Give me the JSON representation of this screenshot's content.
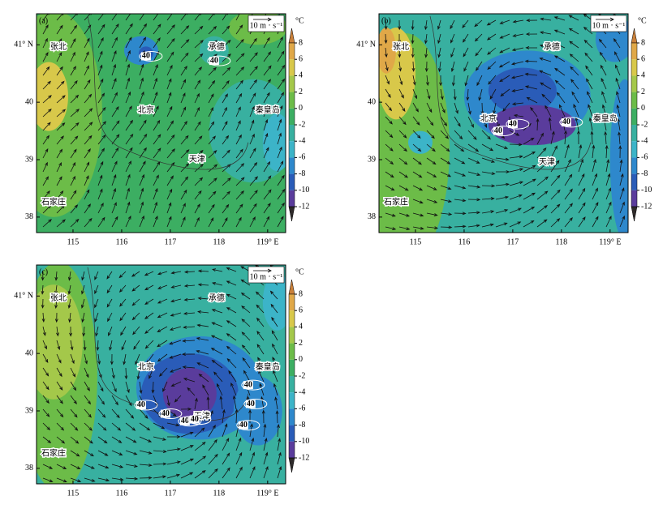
{
  "chart_data": [
    {
      "type": "map",
      "label": "(a)",
      "xlim": [
        114.25,
        119.37
      ],
      "ylim": [
        37.73,
        41.54
      ],
      "xticks": [
        115,
        116,
        117,
        118,
        {
          "value": 119,
          "label": "119° E"
        }
      ],
      "yticks": [
        38,
        39,
        40,
        {
          "value": 41,
          "label": "41° N"
        }
      ],
      "cities": [
        "张北",
        "承德",
        "北京",
        "秦皇岛",
        "天津",
        "石家庄"
      ],
      "contour_labels": [
        40,
        40
      ],
      "vector_key": "10 m · s⁻¹",
      "colorbar": {
        "unit": "°C",
        "ticks": [
          8,
          6,
          4,
          2,
          0,
          -2,
          -4,
          -6,
          -8,
          -10,
          -12
        ],
        "colors": [
          "#c9803a",
          "#e0a848",
          "#d8c84a",
          "#a4c84a",
          "#6cbc48",
          "#3cae62",
          "#38b0a0",
          "#3cb4c8",
          "#2e88cc",
          "#2a5cb8",
          "#5a3c9c",
          "#2e2a2a"
        ]
      }
    },
    {
      "type": "map",
      "label": "(b)",
      "xlim": [
        114.25,
        119.37
      ],
      "ylim": [
        37.73,
        41.54
      ],
      "xticks": [
        115,
        116,
        117,
        118,
        {
          "value": 119,
          "label": "119° E"
        }
      ],
      "yticks": [
        38,
        39,
        40,
        {
          "value": 41,
          "label": "41° N"
        }
      ],
      "cities": [
        "张北",
        "承德",
        "北京",
        "秦皇岛",
        "天津",
        "石家庄"
      ],
      "contour_labels": [
        40,
        40,
        40
      ],
      "vector_key": "10 m · s⁻¹",
      "colorbar": {
        "unit": "°C",
        "ticks": [
          8,
          6,
          4,
          2,
          0,
          -2,
          -4,
          -6,
          -8,
          -10,
          -12
        ],
        "colors": [
          "#c9803a",
          "#e0a848",
          "#d8c84a",
          "#a4c84a",
          "#6cbc48",
          "#3cae62",
          "#38b0a0",
          "#3cb4c8",
          "#2e88cc",
          "#2a5cb8",
          "#5a3c9c",
          "#2e2a2a"
        ]
      }
    },
    {
      "type": "map",
      "label": "(c)",
      "xlim": [
        114.25,
        119.37
      ],
      "ylim": [
        37.73,
        41.54
      ],
      "xticks": [
        115,
        116,
        117,
        118,
        {
          "value": 119,
          "label": "119° E"
        }
      ],
      "yticks": [
        38,
        39,
        40,
        {
          "value": 41,
          "label": "41° N"
        }
      ],
      "cities": [
        "张北",
        "承德",
        "北京",
        "秦皇岛",
        "天津",
        "石家庄"
      ],
      "contour_labels": [
        40,
        40,
        40,
        40,
        40,
        40,
        40
      ],
      "vector_key": "10 m · s⁻¹",
      "colorbar": {
        "unit": "°C",
        "ticks": [
          8,
          6,
          4,
          2,
          0,
          -2,
          -4,
          -6,
          -8,
          -10,
          -12
        ],
        "colors": [
          "#c9803a",
          "#e0a848",
          "#d8c84a",
          "#a4c84a",
          "#6cbc48",
          "#3cae62",
          "#38b0a0",
          "#3cb4c8",
          "#2e88cc",
          "#2a5cb8",
          "#5a3c9c",
          "#2e2a2a"
        ]
      }
    }
  ]
}
